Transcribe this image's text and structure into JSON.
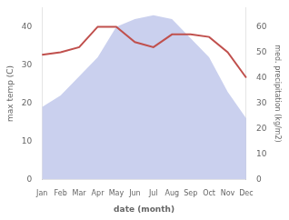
{
  "chart_data": {
    "type": "line",
    "xlabel": "date (month)",
    "ylabel": "max temp (C)",
    "y2label": "med. precipitation (kg/m2)",
    "categories": [
      "Jan",
      "Feb",
      "Mar",
      "Apr",
      "May",
      "Jun",
      "Jul",
      "Aug",
      "Sep",
      "Oct",
      "Nov",
      "Dec"
    ],
    "series": [
      {
        "type": "area",
        "color": "#b8c0e8",
        "values": [
          19,
          22,
          27,
          32,
          40,
          42,
          43,
          42,
          37,
          32,
          23,
          16
        ]
      },
      {
        "type": "line",
        "color": "#c0504d",
        "axis": "y2",
        "values": [
          49,
          50,
          52,
          60,
          60,
          54,
          52,
          57,
          57,
          56,
          50,
          40
        ]
      }
    ],
    "ylim": [
      0,
      45
    ],
    "yticks": [
      0,
      10,
      20,
      30,
      40
    ],
    "y2lim": [
      0,
      67.5
    ],
    "y2ticks": [
      0,
      10,
      20,
      30,
      40,
      50,
      60
    ],
    "grid": false
  }
}
